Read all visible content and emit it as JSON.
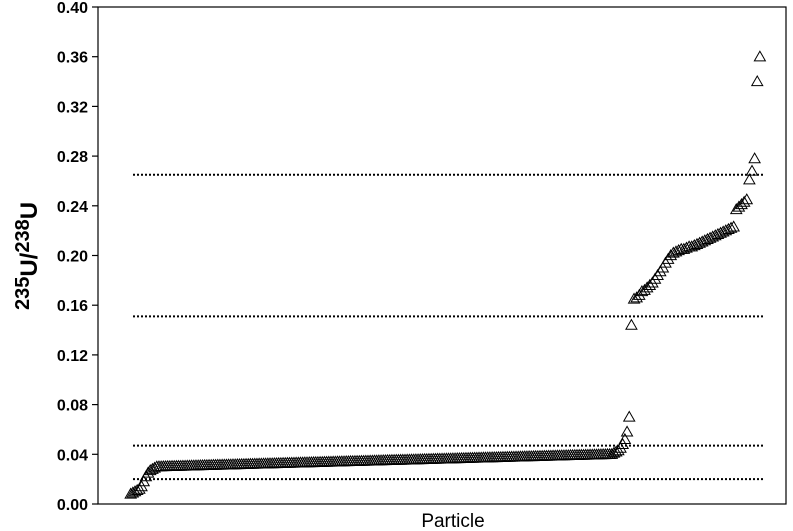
{
  "chart_data": {
    "type": "scatter",
    "xlabel": "Particle",
    "ylabel": {
      "iso1": "235",
      "sym1": "U",
      "slash": "/",
      "iso2": "238",
      "sym2": "U"
    },
    "ylim": [
      0.0,
      0.4
    ],
    "yticks": [
      "0.00",
      "0.04",
      "0.08",
      "0.12",
      "0.16",
      "0.20",
      "0.24",
      "0.28",
      "0.32",
      "0.36",
      "0.40"
    ],
    "ytick_values": [
      0.0,
      0.04,
      0.08,
      0.12,
      0.16,
      0.2,
      0.24,
      0.28,
      0.32,
      0.36,
      0.4
    ],
    "grid": false,
    "marker": "open-triangle",
    "reference_lines": [
      0.02,
      0.047,
      0.151,
      0.265
    ],
    "low_group": {
      "x_range": [
        1,
        230
      ],
      "start_values": [
        0.008,
        0.009,
        0.01,
        0.011,
        0.012,
        0.014,
        0.018,
        0.022,
        0.025,
        0.027,
        0.028,
        0.029
      ],
      "plateau_from": 0.03,
      "plateau_to": 0.04,
      "end_values": [
        0.041,
        0.042,
        0.043,
        0.045,
        0.048,
        0.052,
        0.058,
        0.07
      ]
    },
    "high_group": {
      "x_range": [
        231,
        290
      ],
      "values": [
        0.144,
        0.165,
        0.166,
        0.168,
        0.171,
        0.172,
        0.174,
        0.176,
        0.178,
        0.181,
        0.184,
        0.187,
        0.19,
        0.194,
        0.197,
        0.2,
        0.202,
        0.203,
        0.204,
        0.205,
        0.205,
        0.206,
        0.207,
        0.207,
        0.208,
        0.209,
        0.21,
        0.211,
        0.212,
        0.213,
        0.214,
        0.215,
        0.216,
        0.217,
        0.218,
        0.219,
        0.22,
        0.221,
        0.222,
        0.223,
        0.237,
        0.239,
        0.241,
        0.243,
        0.245,
        0.261,
        0.268,
        0.278,
        0.34,
        0.36
      ]
    }
  }
}
